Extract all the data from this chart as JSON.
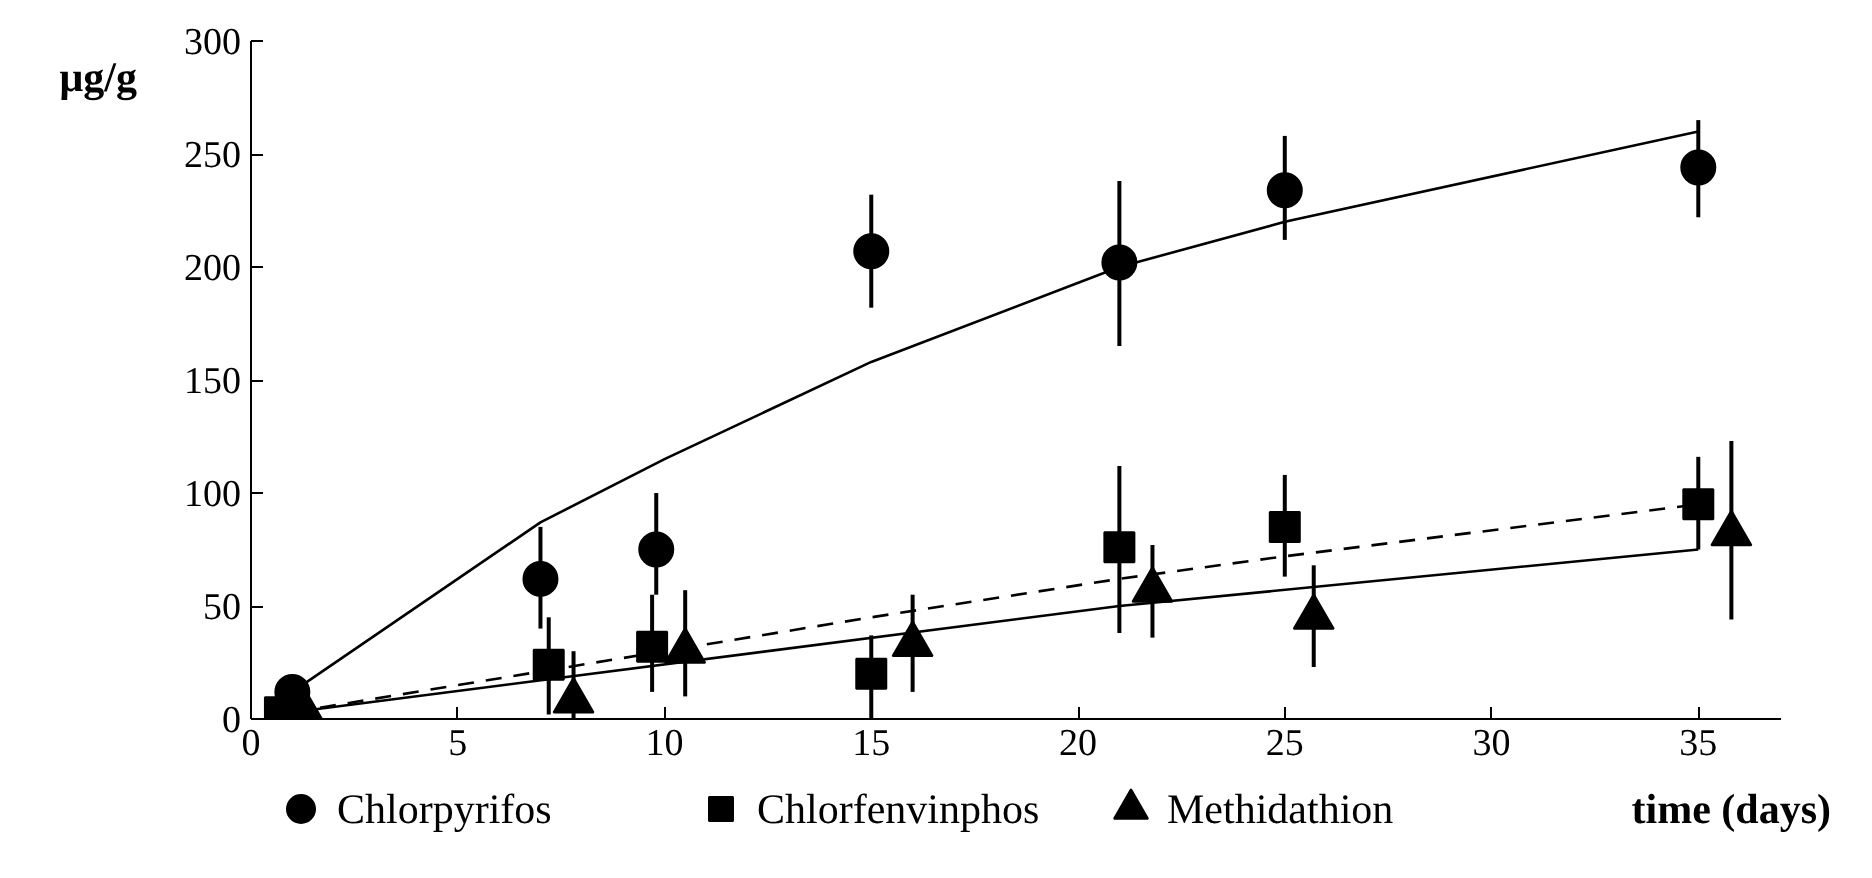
{
  "chart_data": {
    "type": "scatter",
    "xlabel": "time (days)",
    "ylabel": "µg/g",
    "xlim": [
      0,
      37
    ],
    "ylim": [
      0,
      300
    ],
    "xticks": [
      0,
      5,
      10,
      15,
      20,
      25,
      30,
      35
    ],
    "yticks": [
      0,
      50,
      100,
      150,
      200,
      250,
      300
    ],
    "grid": false,
    "legend": "bottom",
    "series": [
      {
        "name": "Chlorpyrifos",
        "color": "#000000",
        "marker": "circle",
        "x": [
          1,
          7,
          9.8,
          15,
          21,
          25,
          35
        ],
        "values": [
          12,
          62,
          75,
          207,
          202,
          234,
          244
        ],
        "errors": [
          null,
          [
            40,
            85
          ],
          [
            55,
            100
          ],
          [
            182,
            232
          ],
          [
            165,
            238
          ],
          [
            212,
            258
          ],
          [
            222,
            265
          ]
        ]
      },
      {
        "name": "Chlorfenvinphos",
        "color": "#000000",
        "marker": "square",
        "x": [
          0.7,
          7.2,
          9.7,
          15,
          21,
          25,
          35
        ],
        "values": [
          3,
          24,
          32,
          20,
          76,
          85,
          95
        ],
        "errors": [
          null,
          [
            2,
            45
          ],
          [
            12,
            55
          ],
          [
            0,
            37
          ],
          [
            38,
            112
          ],
          [
            63,
            108
          ],
          [
            75,
            116
          ]
        ]
      },
      {
        "name": "Methidathion",
        "color": "#000000",
        "marker": "triangle",
        "x": [
          1.3,
          7.8,
          10.5,
          16,
          21.8,
          25.7,
          35.8
        ],
        "values": [
          3,
          8,
          30,
          33,
          57,
          45,
          82
        ],
        "errors": [
          null,
          [
            0,
            30
          ],
          [
            10,
            57
          ],
          [
            12,
            55
          ],
          [
            36,
            77
          ],
          [
            23,
            68
          ],
          [
            44,
            123
          ]
        ]
      },
      {
        "type": "line",
        "color": "#000000",
        "line_style": "solid",
        "marker": "none",
        "x": [
          1,
          7,
          10,
          15,
          21,
          25,
          35
        ],
        "values": [
          12,
          87,
          115,
          158,
          200,
          220,
          260
        ]
      },
      {
        "type": "line",
        "color": "#000000",
        "line_style": "dashed",
        "marker": "none",
        "x": [
          1,
          15,
          21,
          25,
          35
        ],
        "values": [
          3,
          45,
          62,
          72,
          95
        ]
      },
      {
        "type": "line",
        "color": "#000000",
        "line_style": "solid",
        "marker": "none",
        "x": [
          1,
          21,
          35
        ],
        "values": [
          3,
          50,
          75
        ]
      }
    ]
  }
}
